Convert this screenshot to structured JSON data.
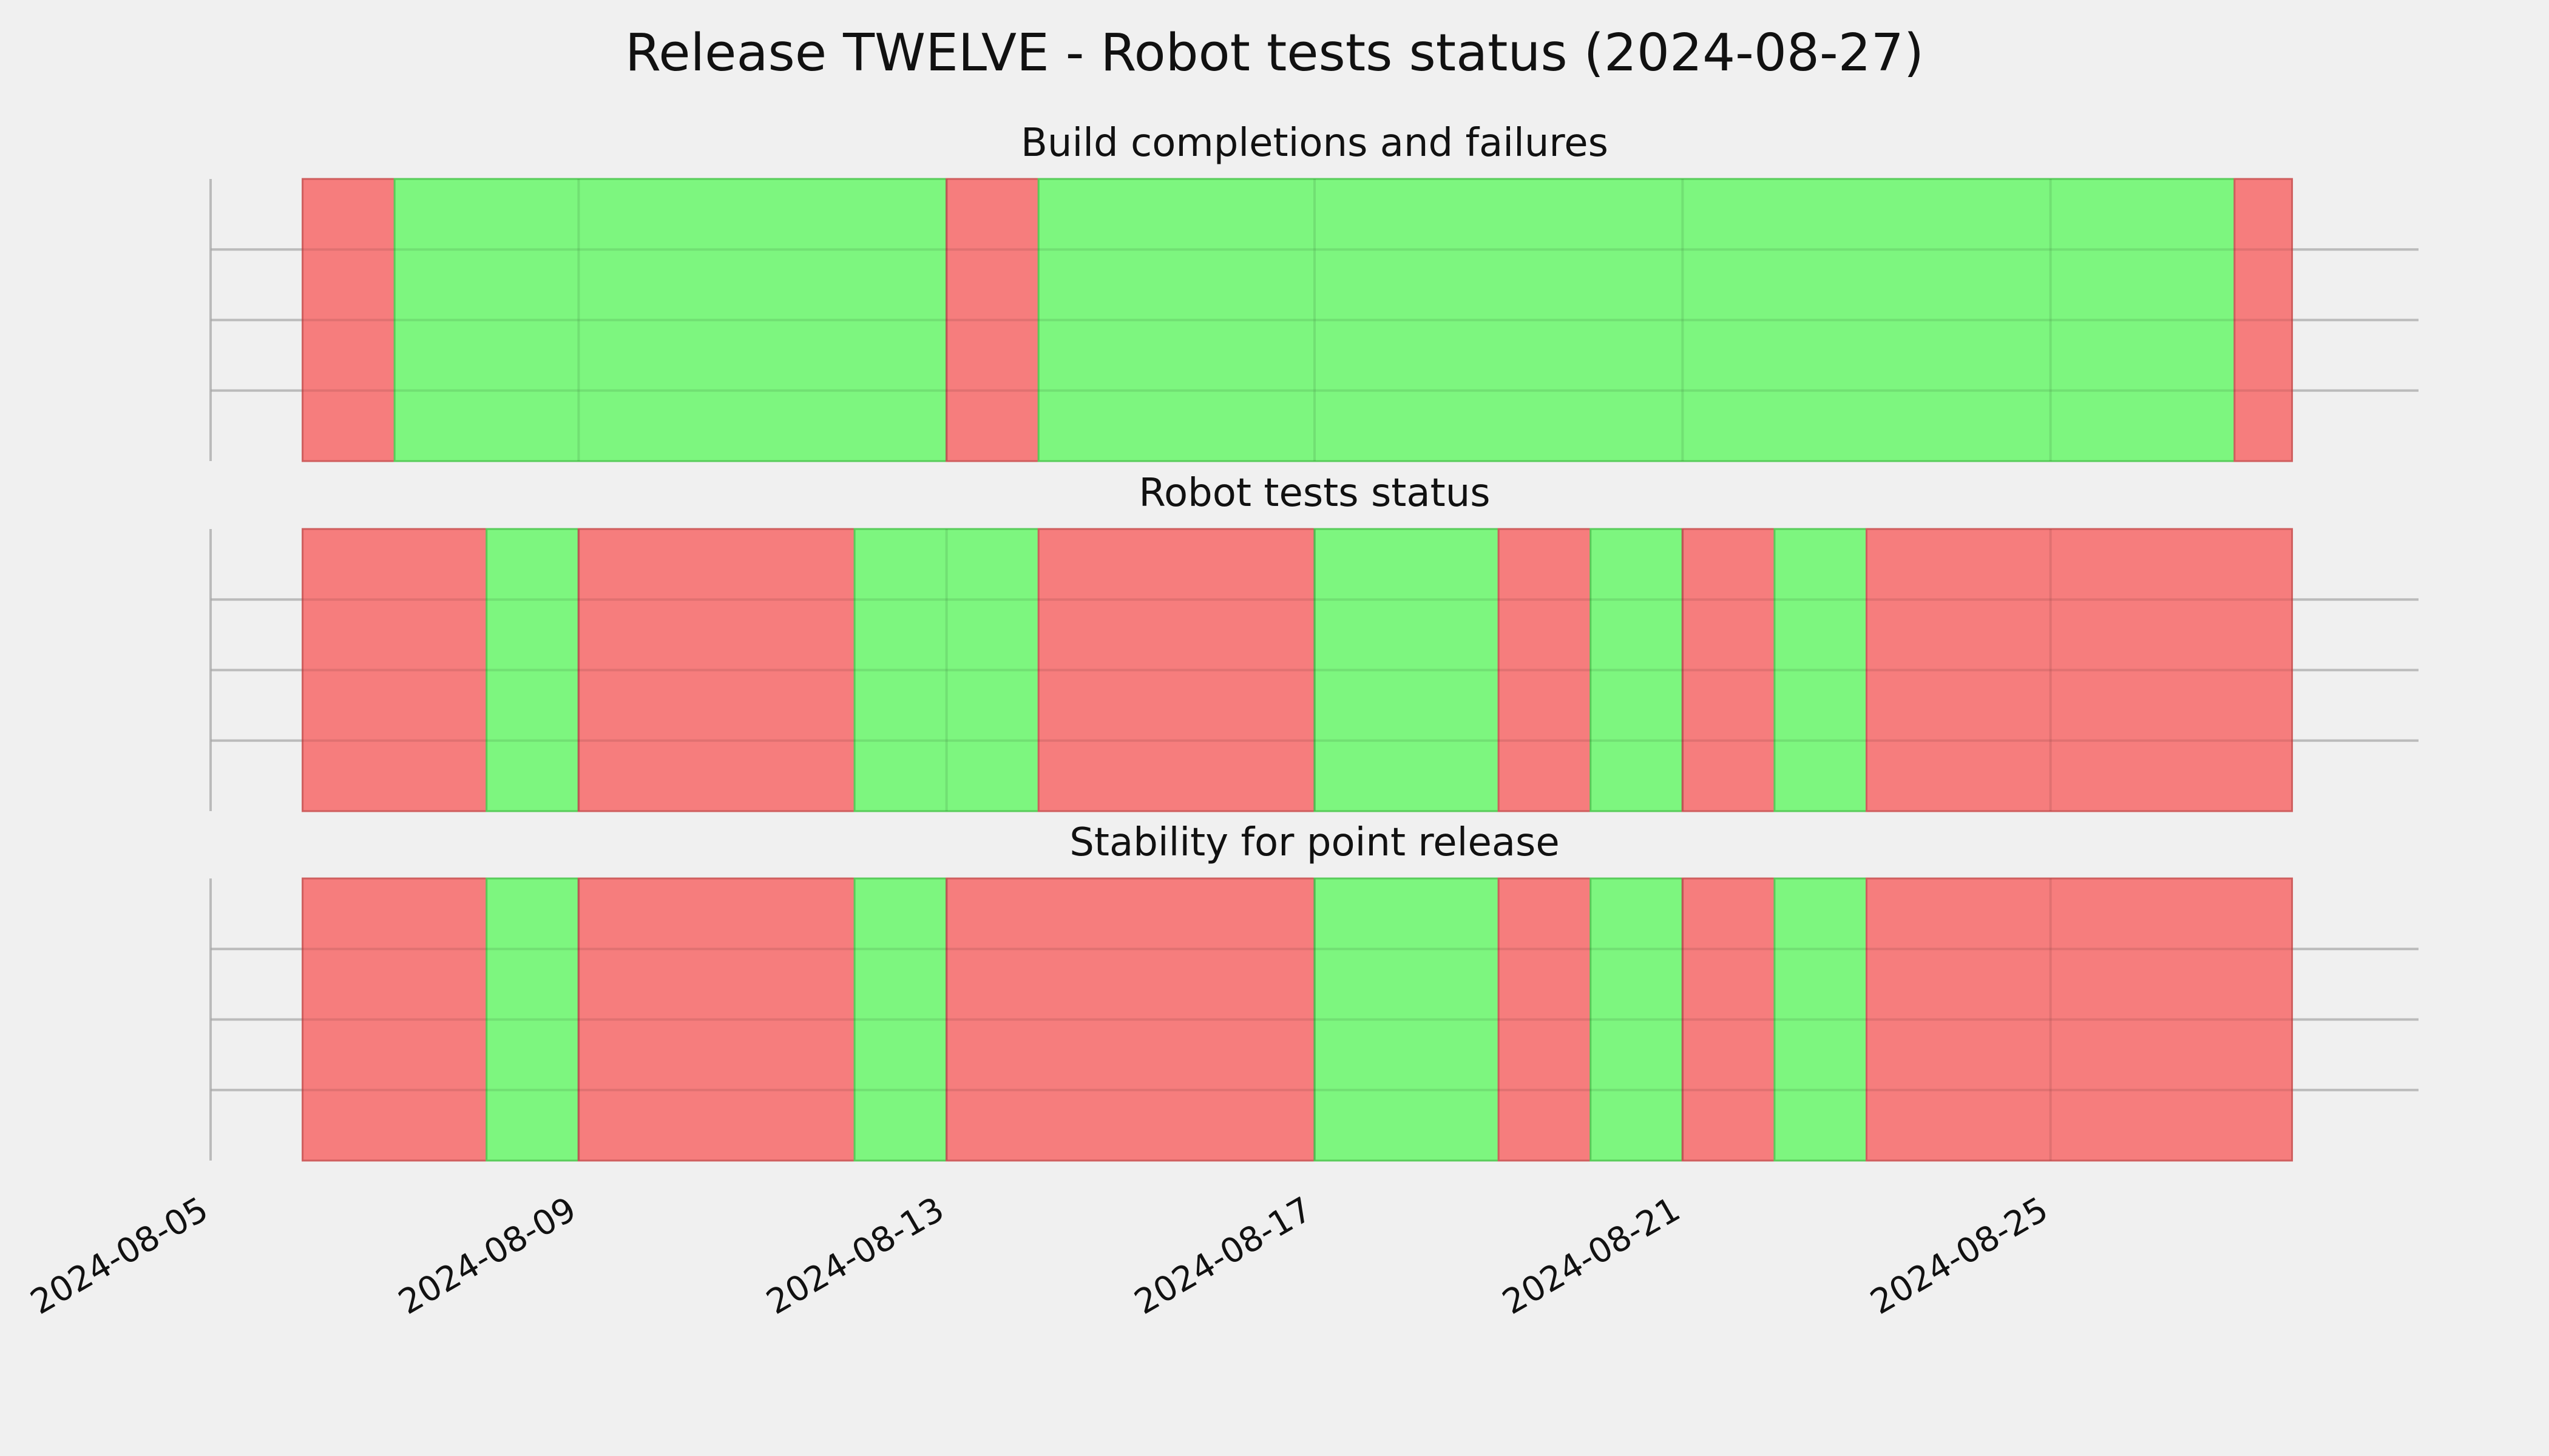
{
  "title": "Release TWELVE - Robot tests status (2024-08-27)",
  "colors": {
    "background": "#f0f0f0",
    "success": "#76f678",
    "failure": "#f67676",
    "grid": "#cbcbcb",
    "success_edge": "#58cc5a",
    "failure_edge": "#cf5e5e"
  },
  "chart_data": {
    "type": "timeline",
    "title": "Release TWELVE - Robot tests status (2024-08-27)",
    "x_axis": {
      "range": [
        "2024-08-05",
        "2024-08-29"
      ],
      "tick_labels": [
        "2024-08-05",
        "2024-08-09",
        "2024-08-13",
        "2024-08-17",
        "2024-08-21",
        "2024-08-25"
      ],
      "grid": true
    },
    "y_axis": {
      "tick_labels": [],
      "grid": true
    },
    "legend": "none",
    "panels": [
      {
        "title": "Build completions and failures",
        "segments": [
          {
            "start": "2024-08-06",
            "end": "2024-08-07",
            "status": "failure"
          },
          {
            "start": "2024-08-07",
            "end": "2024-08-13",
            "status": "success"
          },
          {
            "start": "2024-08-13",
            "end": "2024-08-14",
            "status": "failure"
          },
          {
            "start": "2024-08-14",
            "end": "2024-08-27",
            "status": "success"
          },
          {
            "start": "2024-08-27",
            "end": "2024-08-27T15:00",
            "status": "failure"
          }
        ]
      },
      {
        "title": "Robot tests status",
        "segments": [
          {
            "start": "2024-08-06",
            "end": "2024-08-08",
            "status": "failure"
          },
          {
            "start": "2024-08-08",
            "end": "2024-08-09",
            "status": "success"
          },
          {
            "start": "2024-08-09",
            "end": "2024-08-12",
            "status": "failure"
          },
          {
            "start": "2024-08-12",
            "end": "2024-08-14",
            "status": "success"
          },
          {
            "start": "2024-08-14",
            "end": "2024-08-17",
            "status": "failure"
          },
          {
            "start": "2024-08-17",
            "end": "2024-08-19",
            "status": "success"
          },
          {
            "start": "2024-08-19",
            "end": "2024-08-20",
            "status": "failure"
          },
          {
            "start": "2024-08-20",
            "end": "2024-08-21",
            "status": "success"
          },
          {
            "start": "2024-08-21",
            "end": "2024-08-22",
            "status": "failure"
          },
          {
            "start": "2024-08-22",
            "end": "2024-08-23",
            "status": "success"
          },
          {
            "start": "2024-08-23",
            "end": "2024-08-27T15:00",
            "status": "failure"
          }
        ]
      },
      {
        "title": "Stability for point release",
        "segments": [
          {
            "start": "2024-08-06",
            "end": "2024-08-08",
            "status": "failure"
          },
          {
            "start": "2024-08-08",
            "end": "2024-08-09",
            "status": "success"
          },
          {
            "start": "2024-08-09",
            "end": "2024-08-12",
            "status": "failure"
          },
          {
            "start": "2024-08-12",
            "end": "2024-08-13",
            "status": "success"
          },
          {
            "start": "2024-08-13",
            "end": "2024-08-17",
            "status": "failure"
          },
          {
            "start": "2024-08-17",
            "end": "2024-08-19",
            "status": "success"
          },
          {
            "start": "2024-08-19",
            "end": "2024-08-20",
            "status": "failure"
          },
          {
            "start": "2024-08-20",
            "end": "2024-08-21",
            "status": "success"
          },
          {
            "start": "2024-08-21",
            "end": "2024-08-22",
            "status": "failure"
          },
          {
            "start": "2024-08-22",
            "end": "2024-08-23",
            "status": "success"
          },
          {
            "start": "2024-08-23",
            "end": "2024-08-27T15:00",
            "status": "failure"
          }
        ]
      }
    ]
  }
}
